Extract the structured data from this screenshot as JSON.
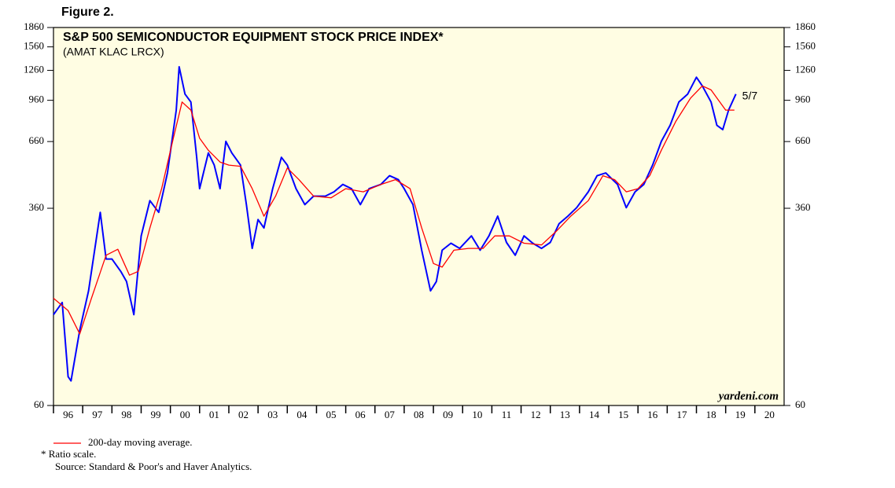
{
  "chart_data": {
    "type": "line",
    "figure_label": "Figure 2.",
    "title": "S&P 500 SEMICONDUCTOR EQUIPMENT STOCK PRICE INDEX*",
    "subtitle": "(AMAT KLAC LRCX)",
    "annotation": "5/7",
    "watermark": "yardeni.com",
    "notes": [
      "* Ratio scale.",
      "Source: Standard & Poor's and Haver Analytics."
    ],
    "log_scale": true,
    "xlim": [
      1996,
      2021
    ],
    "xticks": [
      {
        "value": 1996,
        "label": "96"
      },
      {
        "value": 1997,
        "label": "97"
      },
      {
        "value": 1998,
        "label": "98"
      },
      {
        "value": 1999,
        "label": "99"
      },
      {
        "value": 2000,
        "label": "00"
      },
      {
        "value": 2001,
        "label": "01"
      },
      {
        "value": 2002,
        "label": "02"
      },
      {
        "value": 2003,
        "label": "03"
      },
      {
        "value": 2004,
        "label": "04"
      },
      {
        "value": 2005,
        "label": "05"
      },
      {
        "value": 2006,
        "label": "06"
      },
      {
        "value": 2007,
        "label": "07"
      },
      {
        "value": 2008,
        "label": "08"
      },
      {
        "value": 2009,
        "label": "09"
      },
      {
        "value": 2010,
        "label": "10"
      },
      {
        "value": 2011,
        "label": "11"
      },
      {
        "value": 2012,
        "label": "12"
      },
      {
        "value": 2013,
        "label": "13"
      },
      {
        "value": 2014,
        "label": "14"
      },
      {
        "value": 2015,
        "label": "15"
      },
      {
        "value": 2016,
        "label": "16"
      },
      {
        "value": 2017,
        "label": "17"
      },
      {
        "value": 2018,
        "label": "18"
      },
      {
        "value": 2019,
        "label": "19"
      },
      {
        "value": 2020,
        "label": "20"
      }
    ],
    "ylim": [
      60,
      1860
    ],
    "yticks": [
      60,
      360,
      660,
      960,
      1260,
      1560,
      1860
    ],
    "series": [
      {
        "color": "#0000ff",
        "x": [
          1996.0,
          1996.3,
          1996.5,
          1996.6,
          1996.9,
          1997.2,
          1997.6,
          1997.8,
          1998.0,
          1998.3,
          1998.5,
          1998.75,
          1999.0,
          1999.3,
          1999.6,
          1999.9,
          2000.2,
          2000.3,
          2000.5,
          2000.7,
          2000.9,
          2001.0,
          2001.3,
          2001.5,
          2001.7,
          2001.9,
          2002.1,
          2002.4,
          2002.6,
          2002.8,
          2003.0,
          2003.2,
          2003.5,
          2003.8,
          2004.0,
          2004.3,
          2004.6,
          2004.9,
          2005.3,
          2005.6,
          2005.9,
          2006.2,
          2006.5,
          2006.8,
          2007.2,
          2007.5,
          2007.8,
          2008.0,
          2008.3,
          2008.6,
          2008.9,
          2009.1,
          2009.3,
          2009.6,
          2009.9,
          2010.3,
          2010.6,
          2010.9,
          2011.2,
          2011.5,
          2011.8,
          2012.1,
          2012.4,
          2012.7,
          2013.0,
          2013.3,
          2013.6,
          2013.9,
          2014.3,
          2014.6,
          2014.9,
          2015.3,
          2015.6,
          2015.9,
          2016.2,
          2016.5,
          2016.8,
          2017.1,
          2017.4,
          2017.7,
          2018.0,
          2018.2,
          2018.5,
          2018.7,
          2018.9,
          2019.1,
          2019.35
        ],
        "values": [
          137,
          153,
          78,
          75,
          119,
          170,
          347,
          227,
          227,
          203,
          185,
          137,
          280,
          386,
          347,
          496,
          878,
          1302,
          1016,
          945,
          572,
          430,
          595,
          533,
          430,
          661,
          595,
          533,
          372,
          250,
          325,
          301,
          430,
          572,
          533,
          430,
          372,
          402,
          402,
          418,
          447,
          430,
          372,
          430,
          447,
          484,
          467,
          430,
          372,
          246,
          170,
          185,
          246,
          262,
          250,
          280,
          246,
          280,
          335,
          264,
          235,
          280,
          262,
          250,
          264,
          313,
          335,
          362,
          418,
          484,
          496,
          447,
          362,
          418,
          447,
          533,
          661,
          765,
          945,
          1016,
          1184,
          1094,
          945,
          765,
          736,
          878,
          1016
        ]
      },
      {
        "name": "200-day moving average.",
        "color": "#ff0000",
        "x": [
          1996.0,
          1996.5,
          1996.9,
          1997.3,
          1997.8,
          1998.2,
          1998.6,
          1998.9,
          1999.3,
          1999.7,
          2000.1,
          2000.4,
          2000.7,
          2001.0,
          2001.3,
          2001.7,
          2002.0,
          2002.4,
          2002.8,
          2003.2,
          2003.6,
          2004.0,
          2004.4,
          2004.9,
          2005.5,
          2006.0,
          2006.6,
          2007.2,
          2007.7,
          2008.2,
          2008.6,
          2009.0,
          2009.3,
          2009.7,
          2010.2,
          2010.7,
          2011.1,
          2011.6,
          2012.1,
          2012.7,
          2013.2,
          2013.7,
          2014.3,
          2014.8,
          2015.2,
          2015.6,
          2016.0,
          2016.4,
          2016.8,
          2017.3,
          2017.8,
          2018.2,
          2018.5,
          2018.8,
          2019.0,
          2019.3
        ],
        "values": [
          159,
          142,
          115,
          159,
          235,
          248,
          196,
          203,
          301,
          430,
          680,
          945,
          878,
          680,
          610,
          548,
          533,
          527,
          430,
          335,
          402,
          519,
          467,
          402,
          396,
          430,
          418,
          447,
          467,
          430,
          301,
          218,
          211,
          246,
          250,
          250,
          280,
          280,
          262,
          258,
          292,
          335,
          386,
          484,
          467,
          418,
          430,
          484,
          610,
          795,
          980,
          1094,
          1055,
          945,
          878,
          878
        ]
      }
    ]
  }
}
